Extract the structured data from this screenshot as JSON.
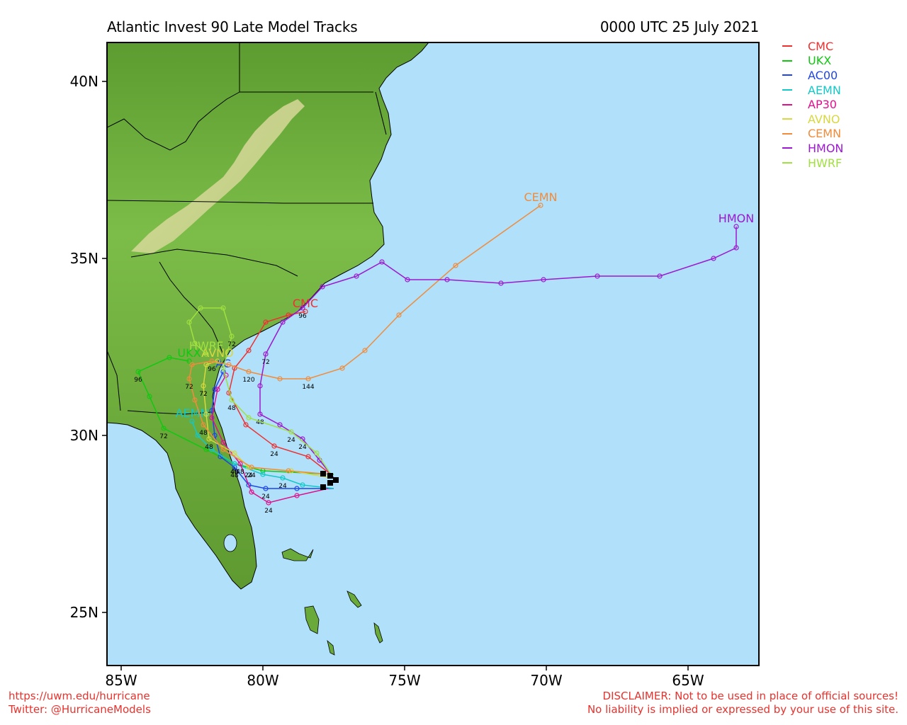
{
  "title_left": "Atlantic Invest 90 Late Model Tracks",
  "title_right": "0000 UTC 25 July 2021",
  "footer": {
    "left_line1": "https://uwm.edu/hurricane",
    "left_line2": "Twitter: @HurricaneModels",
    "right_line1": "DISCLAIMER: Not to be used in place of official sources!",
    "right_line2": "No liability is implied or expressed by your use of this site."
  },
  "axes": {
    "lat_ticks": [
      "40N",
      "35N",
      "30N",
      "25N"
    ],
    "lon_ticks": [
      "85W",
      "80W",
      "75W",
      "70W",
      "65W"
    ]
  },
  "colors": {
    "ocean": "#b0e0fa",
    "land": "#6aaa3a"
  },
  "models": [
    {
      "name": "CMC",
      "color": "#ee3030",
      "map_label": "CMC",
      "hour_labels": [
        "24"
      ]
    },
    {
      "name": "UKX",
      "color": "#10c810",
      "map_label": "UKX",
      "hour_labels": [
        "48",
        "72",
        "96"
      ]
    },
    {
      "name": "AC00",
      "color": "#1e46e6",
      "map_label": "AC",
      "hour_labels": [
        "24",
        "48"
      ]
    },
    {
      "name": "AEMN",
      "color": "#14c8c8",
      "map_label": "AEMN",
      "hour_labels": [
        "24",
        "48"
      ]
    },
    {
      "name": "AP30",
      "color": "#e0108c",
      "map_label": "",
      "hour_labels": [
        "24",
        "48"
      ]
    },
    {
      "name": "AVNO",
      "color": "#d8d840",
      "map_label": "AVNO",
      "hour_labels": [
        "24",
        "48",
        "72"
      ]
    },
    {
      "name": "CEMN",
      "color": "#f08c3c",
      "map_label": "CEMN",
      "hour_labels": [
        "24",
        "48",
        "72",
        "96",
        "120",
        "144"
      ]
    },
    {
      "name": "HMON",
      "color": "#9c18d2",
      "map_label": "HMON",
      "hour_labels": [
        "24",
        "48",
        "72",
        "96"
      ]
    },
    {
      "name": "HWRF",
      "color": "#a0e040",
      "map_label": "HWRF",
      "hour_labels": [
        "24",
        "48",
        "72"
      ]
    }
  ],
  "chart_data": {
    "type": "map",
    "region": {
      "lon_range": [
        -85.5,
        -62.5
      ],
      "lat_range": [
        23.5,
        41.1
      ]
    },
    "storm_start": {
      "lon": -77.5,
      "lat": 28.8
    },
    "tracks": [
      {
        "name": "CMC",
        "points": [
          [
            -77.6,
            28.9
          ],
          [
            -78.4,
            29.4
          ],
          [
            -79.6,
            29.7
          ],
          [
            -80.6,
            30.3
          ],
          [
            -81.2,
            31.2
          ],
          [
            -81.0,
            31.9
          ],
          [
            -80.5,
            32.4
          ],
          [
            -79.9,
            33.2
          ],
          [
            -79.1,
            33.4
          ],
          [
            -78.5,
            33.5
          ]
        ]
      },
      {
        "name": "UKX",
        "points": [
          [
            -77.5,
            28.9
          ],
          [
            -80.0,
            29.0
          ],
          [
            -81.0,
            29.2
          ],
          [
            -82.0,
            29.6
          ],
          [
            -83.5,
            30.2
          ],
          [
            -84.0,
            31.1
          ],
          [
            -84.4,
            31.8
          ],
          [
            -83.3,
            32.2
          ],
          [
            -82.6,
            32.1
          ]
        ]
      },
      {
        "name": "AC00",
        "points": [
          [
            -77.5,
            28.5
          ],
          [
            -78.8,
            28.5
          ],
          [
            -79.9,
            28.5
          ],
          [
            -80.5,
            28.6
          ],
          [
            -81.0,
            29.1
          ],
          [
            -81.5,
            29.4
          ],
          [
            -81.7,
            30.0
          ],
          [
            -81.8,
            30.7
          ],
          [
            -81.7,
            31.3
          ],
          [
            -81.4,
            31.8
          ]
        ]
      },
      {
        "name": "AEMN",
        "points": [
          [
            -77.5,
            28.5
          ],
          [
            -78.6,
            28.6
          ],
          [
            -79.3,
            28.8
          ],
          [
            -80.0,
            28.9
          ],
          [
            -81.0,
            29.2
          ],
          [
            -81.8,
            29.6
          ],
          [
            -82.3,
            30.0
          ],
          [
            -82.5,
            30.4
          ]
        ]
      },
      {
        "name": "AP30",
        "points": [
          [
            -77.7,
            28.5
          ],
          [
            -78.8,
            28.3
          ],
          [
            -79.8,
            28.1
          ],
          [
            -80.4,
            28.4
          ],
          [
            -80.8,
            29.2
          ],
          [
            -81.4,
            29.8
          ],
          [
            -81.8,
            30.5
          ],
          [
            -81.6,
            31.3
          ],
          [
            -81.3,
            31.7
          ]
        ]
      },
      {
        "name": "AVNO",
        "points": [
          [
            -77.6,
            28.8
          ],
          [
            -79.0,
            29.0
          ],
          [
            -80.5,
            29.1
          ],
          [
            -81.0,
            29.5
          ],
          [
            -81.9,
            29.9
          ],
          [
            -82.0,
            30.6
          ],
          [
            -82.1,
            31.4
          ],
          [
            -82.0,
            32.0
          ],
          [
            -81.6,
            32.1
          ]
        ]
      },
      {
        "name": "CEMN",
        "points": [
          [
            -77.6,
            28.9
          ],
          [
            -79.1,
            29.0
          ],
          [
            -80.4,
            29.1
          ],
          [
            -81.4,
            29.6
          ],
          [
            -82.1,
            30.3
          ],
          [
            -82.4,
            31.0
          ],
          [
            -82.6,
            31.6
          ],
          [
            -82.5,
            32.0
          ],
          [
            -81.8,
            32.1
          ],
          [
            -81.2,
            32.0
          ],
          [
            -80.5,
            31.8
          ],
          [
            -79.4,
            31.6
          ],
          [
            -78.4,
            31.6
          ],
          [
            -77.2,
            31.9
          ],
          [
            -76.4,
            32.4
          ],
          [
            -75.2,
            33.4
          ],
          [
            -73.2,
            34.8
          ],
          [
            -70.2,
            36.5
          ]
        ]
      },
      {
        "name": "HMON",
        "points": [
          [
            -77.5,
            28.8
          ],
          [
            -78.0,
            29.3
          ],
          [
            -78.6,
            29.9
          ],
          [
            -79.4,
            30.3
          ],
          [
            -80.1,
            30.6
          ],
          [
            -80.1,
            31.4
          ],
          [
            -79.9,
            32.3
          ],
          [
            -79.3,
            33.2
          ],
          [
            -78.6,
            33.6
          ],
          [
            -77.9,
            34.2
          ],
          [
            -76.7,
            34.5
          ],
          [
            -75.8,
            34.9
          ],
          [
            -74.9,
            34.4
          ],
          [
            -73.5,
            34.4
          ],
          [
            -71.6,
            34.3
          ],
          [
            -70.1,
            34.4
          ],
          [
            -68.2,
            34.5
          ],
          [
            -66.0,
            34.5
          ],
          [
            -64.1,
            35.0
          ],
          [
            -63.3,
            35.3
          ],
          [
            -63.3,
            35.9
          ]
        ]
      },
      {
        "name": "HWRF",
        "points": [
          [
            -77.6,
            28.9
          ],
          [
            -78.1,
            29.5
          ],
          [
            -79.0,
            30.1
          ],
          [
            -80.5,
            30.5
          ],
          [
            -81.1,
            31.0
          ],
          [
            -81.4,
            31.9
          ],
          [
            -81.1,
            32.8
          ],
          [
            -81.4,
            33.6
          ],
          [
            -82.2,
            33.6
          ],
          [
            -82.6,
            33.2
          ],
          [
            -82.4,
            32.6
          ],
          [
            -82.0,
            32.3
          ]
        ]
      }
    ]
  }
}
